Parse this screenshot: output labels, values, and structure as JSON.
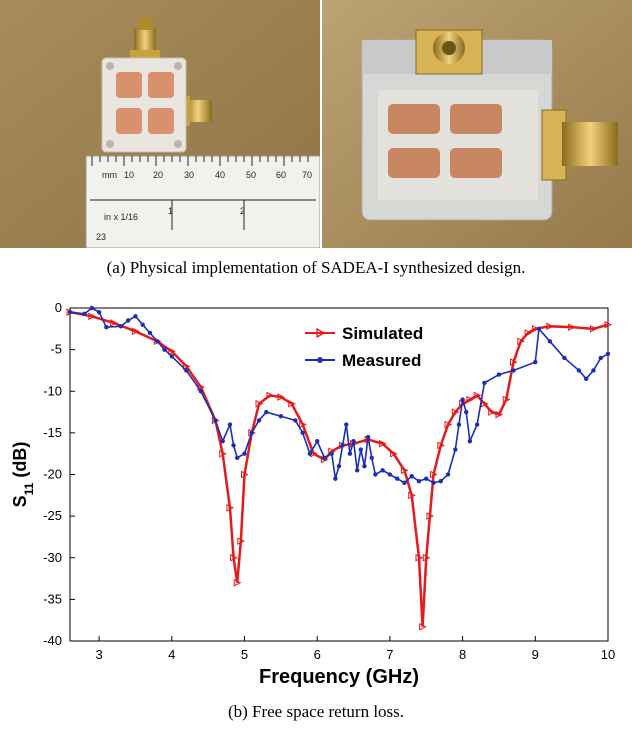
{
  "caption_a": "(a) Physical implementation of SADEA-I synthesized design.",
  "caption_b": "(b) Free space return loss.",
  "photo_a": {
    "ruler_mm_ticks": [
      "mm",
      "10",
      "20",
      "30",
      "40",
      "50",
      "60",
      "70"
    ],
    "ruler_inch_ticks": [
      "in x 1/16",
      "1",
      "2"
    ],
    "ruler_edge_label": "23"
  },
  "colors": {
    "simulated": "#e41a1c",
    "measured": "#1a2fb5",
    "patch": "#d9906f",
    "substrate": "#e9e6df",
    "connector": "#c9a23c"
  },
  "chart_data": {
    "type": "line",
    "xlabel": "Frequency (GHz)",
    "ylabel_main": "S",
    "ylabel_sub": "11",
    "ylabel_unit": " (dB)",
    "xlim": [
      2.6,
      10
    ],
    "ylim": [
      -40,
      0
    ],
    "xticks": [
      3,
      4,
      5,
      6,
      7,
      8,
      9,
      10
    ],
    "yticks": [
      0,
      -5,
      -10,
      -15,
      -20,
      -25,
      -30,
      -35,
      -40
    ],
    "legend_position": "top-center",
    "series": [
      {
        "name": "Simulated",
        "marker": "triangle-right",
        "x": [
          2.6,
          2.9,
          3.2,
          3.5,
          3.8,
          4.0,
          4.2,
          4.4,
          4.6,
          4.7,
          4.8,
          4.85,
          4.9,
          4.95,
          5.0,
          5.1,
          5.2,
          5.35,
          5.5,
          5.65,
          5.8,
          5.95,
          6.1,
          6.2,
          6.35,
          6.5,
          6.7,
          6.9,
          7.05,
          7.2,
          7.3,
          7.4,
          7.45,
          7.5,
          7.55,
          7.6,
          7.7,
          7.8,
          7.9,
          8.0,
          8.1,
          8.2,
          8.3,
          8.4,
          8.5,
          8.6,
          8.7,
          8.8,
          8.9,
          9.0,
          9.2,
          9.5,
          9.8,
          10.0
        ],
        "y": [
          -0.5,
          -1.0,
          -1.8,
          -2.8,
          -4.0,
          -5.2,
          -7.0,
          -9.5,
          -13.5,
          -17.5,
          -24,
          -30,
          -33,
          -28,
          -20,
          -15,
          -11.5,
          -10.5,
          -10.7,
          -11.5,
          -14,
          -17.5,
          -18.2,
          -17.2,
          -16.5,
          -16.3,
          -15.8,
          -16.3,
          -17.5,
          -19.5,
          -22.5,
          -30,
          -38.3,
          -30,
          -25,
          -20,
          -16.5,
          -14.0,
          -12.5,
          -11.5,
          -11.0,
          -10.5,
          -11.5,
          -12.5,
          -12.8,
          -11.0,
          -6.5,
          -4.0,
          -3.0,
          -2.5,
          -2.2,
          -2.3,
          -2.5,
          -2.0
        ]
      },
      {
        "name": "Measured",
        "marker": "star",
        "x": [
          2.6,
          2.8,
          2.9,
          3.0,
          3.1,
          3.3,
          3.4,
          3.5,
          3.6,
          3.7,
          3.8,
          3.9,
          4.0,
          4.2,
          4.4,
          4.6,
          4.7,
          4.8,
          4.85,
          4.9,
          5.0,
          5.1,
          5.2,
          5.3,
          5.5,
          5.7,
          5.8,
          5.9,
          6.0,
          6.1,
          6.2,
          6.25,
          6.3,
          6.35,
          6.4,
          6.45,
          6.5,
          6.55,
          6.6,
          6.65,
          6.7,
          6.75,
          6.8,
          6.9,
          7.0,
          7.1,
          7.2,
          7.3,
          7.4,
          7.5,
          7.6,
          7.7,
          7.8,
          7.9,
          7.95,
          8.0,
          8.05,
          8.1,
          8.2,
          8.3,
          8.5,
          8.7,
          9.0,
          9.05,
          9.2,
          9.4,
          9.6,
          9.7,
          9.8,
          9.9,
          10.0
        ],
        "y": [
          -0.5,
          -0.7,
          0,
          -0.5,
          -2.3,
          -2.2,
          -1.5,
          -1.0,
          -2.0,
          -3.0,
          -4.0,
          -5.0,
          -5.8,
          -7.5,
          -10.0,
          -13.5,
          -16.0,
          -14.0,
          -16.5,
          -18.0,
          -17.5,
          -15.0,
          -13.5,
          -12.5,
          -13.0,
          -13.5,
          -15.0,
          -17.5,
          -16.0,
          -18.0,
          -17.5,
          -20.5,
          -19.0,
          -16.5,
          -14.0,
          -17.5,
          -16.0,
          -19.5,
          -17.0,
          -19.0,
          -15.5,
          -18.0,
          -20.0,
          -19.5,
          -20.0,
          -20.5,
          -21.0,
          -20.2,
          -20.8,
          -20.5,
          -21.0,
          -20.8,
          -20.0,
          -17.0,
          -14.0,
          -11.0,
          -12.5,
          -16.0,
          -14.0,
          -9.0,
          -8.0,
          -7.5,
          -6.5,
          -2.5,
          -4.0,
          -6.0,
          -7.5,
          -8.5,
          -7.5,
          -6.0,
          -5.5
        ]
      }
    ]
  }
}
